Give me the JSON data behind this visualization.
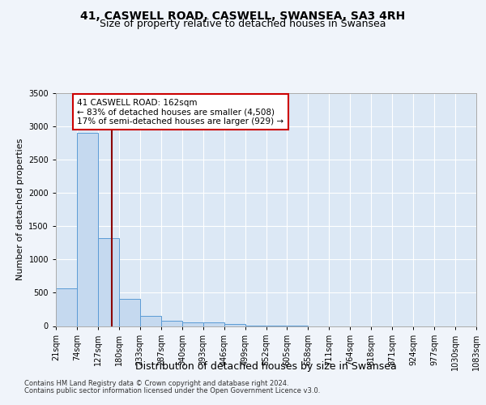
{
  "title": "41, CASWELL ROAD, CASWELL, SWANSEA, SA3 4RH",
  "subtitle": "Size of property relative to detached houses in Swansea",
  "xlabel": "Distribution of detached houses by size in Swansea",
  "ylabel": "Number of detached properties",
  "bin_edges": [
    21,
    74,
    127,
    180,
    233,
    287,
    340,
    393,
    446,
    499,
    552,
    605,
    658,
    711,
    764,
    818,
    871,
    924,
    977,
    1030,
    1083
  ],
  "bar_heights": [
    570,
    2900,
    1320,
    410,
    155,
    75,
    55,
    50,
    35,
    5,
    2,
    1,
    0,
    0,
    0,
    0,
    0,
    0,
    0,
    0
  ],
  "bar_color": "#c5d9ef",
  "bar_edge_color": "#5b9bd5",
  "property_size": 162,
  "vline_color": "#8b0000",
  "annotation_line1": "41 CASWELL ROAD: 162sqm",
  "annotation_line2": "← 83% of detached houses are smaller (4,508)",
  "annotation_line3": "17% of semi-detached houses are larger (929) →",
  "annotation_box_color": "#ffffff",
  "annotation_box_edge_color": "#cc0000",
  "ylim": [
    0,
    3500
  ],
  "yticks": [
    0,
    500,
    1000,
    1500,
    2000,
    2500,
    3000,
    3500
  ],
  "footer_line1": "Contains HM Land Registry data © Crown copyright and database right 2024.",
  "footer_line2": "Contains public sector information licensed under the Open Government Licence v3.0.",
  "bg_color": "#f0f4fa",
  "plot_bg_color": "#dce8f5",
  "title_fontsize": 10,
  "subtitle_fontsize": 9,
  "tick_label_fontsize": 7,
  "ylabel_fontsize": 8,
  "xlabel_fontsize": 9,
  "annotation_fontsize": 7.5,
  "footer_fontsize": 6
}
